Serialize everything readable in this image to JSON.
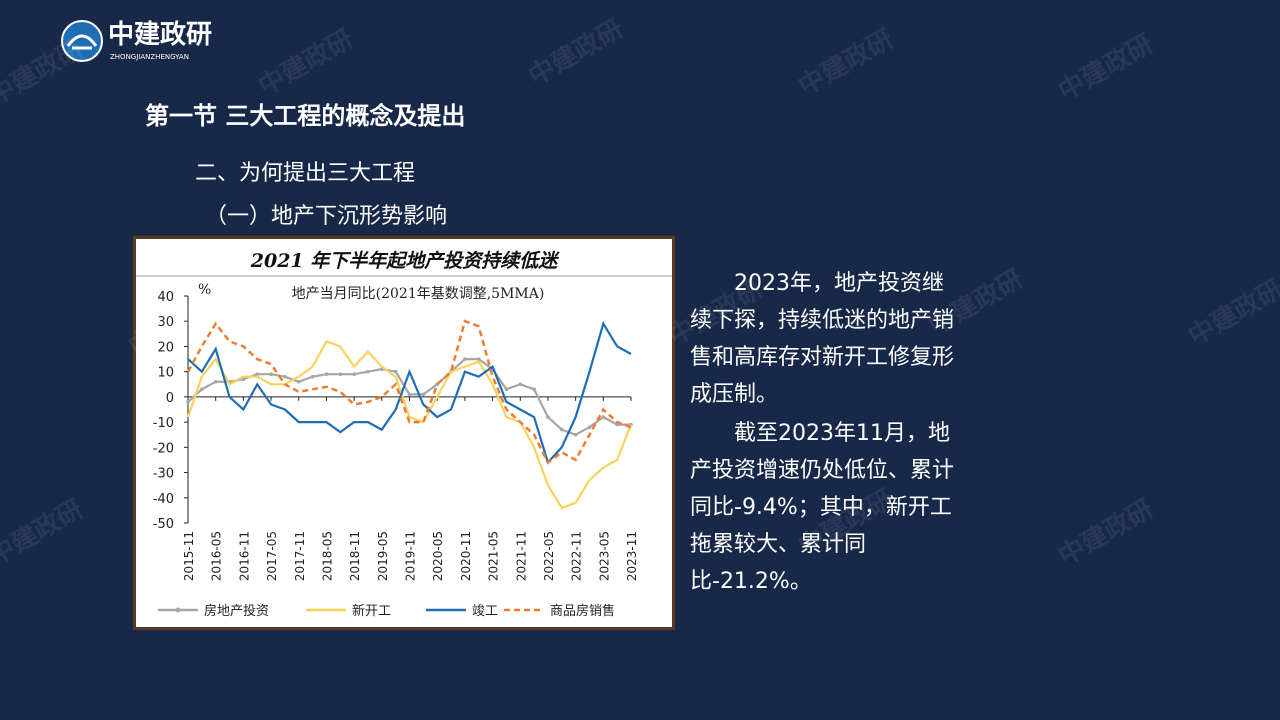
{
  "logo": {
    "name": "中建政研",
    "pinyin": "ZHONGJIANZHENGYAN"
  },
  "watermark": "中建政研",
  "heading": "第一节 三大工程的概念及提出",
  "subheading": "二、为何提出三大工程",
  "section": "（一）地产下沉形势影响",
  "paragraphs": [
    "2023年，地产投资继续下探，持续低迷的地产销售和高库存对新开工修复形成压制。",
    "截至2023年11月，地产投资增速仍处低位、累计同比-9.4%；其中，新开工拖累较大、累计同比-21.2%。"
  ],
  "chart_data": {
    "type": "line",
    "title": "2021 年下半年起地产投资持续低迷",
    "subtitle": "地产当月同比(2021年基数调整,5MMA)",
    "ylabel": "%",
    "x": [
      "2015-11",
      "2016-02",
      "2016-05",
      "2016-08",
      "2016-11",
      "2017-02",
      "2017-05",
      "2017-08",
      "2017-11",
      "2018-02",
      "2018-05",
      "2018-08",
      "2018-11",
      "2019-02",
      "2019-05",
      "2019-08",
      "2019-11",
      "2020-02",
      "2020-05",
      "2020-08",
      "2020-11",
      "2021-02",
      "2021-05",
      "2021-08",
      "2021-11",
      "2022-02",
      "2022-05",
      "2022-08",
      "2022-11",
      "2023-02",
      "2023-05",
      "2023-08",
      "2023-11"
    ],
    "xticks": [
      "2015-11",
      "2016-05",
      "2016-11",
      "2017-05",
      "2017-11",
      "2018-05",
      "2018-11",
      "2019-05",
      "2019-11",
      "2020-05",
      "2020-11",
      "2021-05",
      "2021-11",
      "2022-05",
      "2022-11",
      "2023-05",
      "2023-11"
    ],
    "ylim": [
      -50,
      40
    ],
    "yticks": [
      -50,
      -40,
      -30,
      -20,
      -10,
      0,
      10,
      20,
      30,
      40
    ],
    "grid": false,
    "legend": "bottom",
    "series": [
      {
        "name": "房地产投资",
        "color": "#a6a6a6",
        "style": "solid",
        "marker": "circle",
        "values": [
          -2,
          3,
          6,
          6,
          7,
          9,
          9,
          8,
          6,
          8,
          9,
          9,
          9,
          10,
          11,
          10,
          1,
          1,
          5,
          10,
          15,
          15,
          11,
          3,
          5,
          3,
          -8,
          -13,
          -15,
          -12,
          -8,
          -11,
          -11
        ]
      },
      {
        "name": "新开工",
        "color": "#f7d35c",
        "style": "solid",
        "marker": "none",
        "values": [
          -8,
          8,
          15,
          5,
          8,
          8,
          5,
          5,
          8,
          12,
          22,
          20,
          12,
          18,
          12,
          8,
          -8,
          -10,
          0,
          10,
          12,
          14,
          5,
          -8,
          -10,
          -20,
          -35,
          -44,
          -42,
          -33,
          -28,
          -25,
          -11
        ]
      },
      {
        "name": "竣工",
        "color": "#1f6db5",
        "style": "solid",
        "marker": "none",
        "values": [
          15,
          10,
          19,
          0,
          -5,
          5,
          -3,
          -5,
          -10,
          -10,
          -10,
          -14,
          -10,
          -10,
          -13,
          -5,
          10,
          -3,
          -8,
          -5,
          10,
          8,
          12,
          -2,
          -5,
          -8,
          -26,
          -20,
          -8,
          10,
          29,
          20,
          17
        ]
      },
      {
        "name": "商品房销售",
        "color": "#ed7d31",
        "style": "dashed",
        "marker": "none",
        "values": [
          10,
          20,
          29,
          22,
          20,
          15,
          13,
          5,
          2,
          3,
          4,
          2,
          -3,
          -2,
          0,
          5,
          -10,
          -10,
          5,
          10,
          30,
          28,
          8,
          -5,
          -10,
          -15,
          -26,
          -22,
          -25,
          -15,
          -5,
          -10,
          -12
        ]
      }
    ]
  }
}
